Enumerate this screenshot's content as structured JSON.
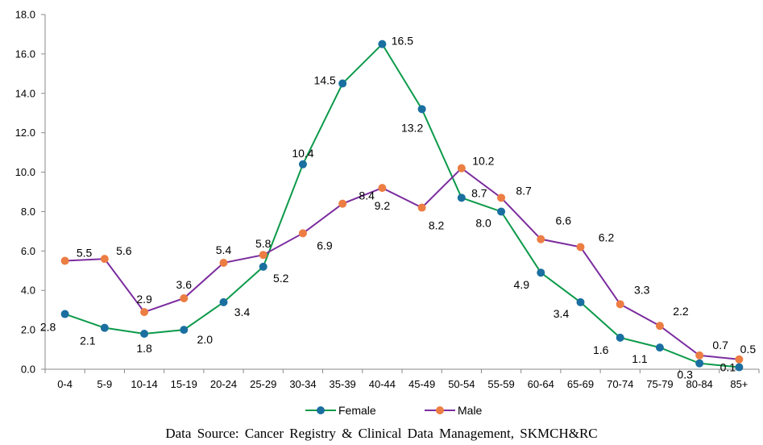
{
  "chart_data": {
    "type": "line",
    "categories": [
      "0-4",
      "5-9",
      "10-14",
      "15-19",
      "20-24",
      "25-29",
      "30-34",
      "35-39",
      "40-44",
      "45-49",
      "50-54",
      "55-59",
      "60-64",
      "65-69",
      "70-74",
      "75-79",
      "80-84",
      "85+"
    ],
    "series": [
      {
        "name": "Female",
        "color": "#0c9a4a",
        "marker_color": "#1a6fa0",
        "values": [
          2.8,
          2.1,
          1.8,
          2.0,
          3.4,
          5.2,
          10.4,
          14.5,
          16.5,
          13.2,
          8.7,
          8.0,
          4.9,
          3.4,
          1.6,
          1.1,
          0.3,
          0.1
        ],
        "labels": [
          "2.8",
          "2.1",
          "1.8",
          "2.0",
          "3.4",
          "5.2",
          "10.4",
          "14.5",
          "16.5",
          "13.2",
          "8.7",
          "8.0",
          "4.9",
          "3.4",
          "1.6",
          "1.1",
          "0.3",
          "0.1"
        ]
      },
      {
        "name": "Male",
        "color": "#7b2d9e",
        "marker_color": "#ec7d43",
        "values": [
          5.5,
          5.6,
          2.9,
          3.6,
          5.4,
          5.8,
          6.9,
          8.4,
          9.2,
          8.2,
          10.2,
          8.7,
          6.6,
          6.2,
          3.3,
          2.2,
          0.7,
          0.5
        ],
        "labels": [
          "5.5",
          "5.6",
          "2.9",
          "3.6",
          "5.4",
          "5.8",
          "6.9",
          "8.4",
          "9.2",
          "8.2",
          "10.2",
          "8.7",
          "6.6",
          "6.2",
          "3.3",
          "2.2",
          "0.7",
          "0.5"
        ]
      }
    ],
    "yticks": [
      "0.0",
      "2.0",
      "4.0",
      "6.0",
      "8.0",
      "10.0",
      "12.0",
      "14.0",
      "16.0",
      "18.0"
    ],
    "ylim": [
      0,
      18
    ],
    "grid": false,
    "legend_position": "bottom"
  },
  "source_text": "Data Source: Cancer Registry & Clinical Data Management, SKMCH&RC"
}
